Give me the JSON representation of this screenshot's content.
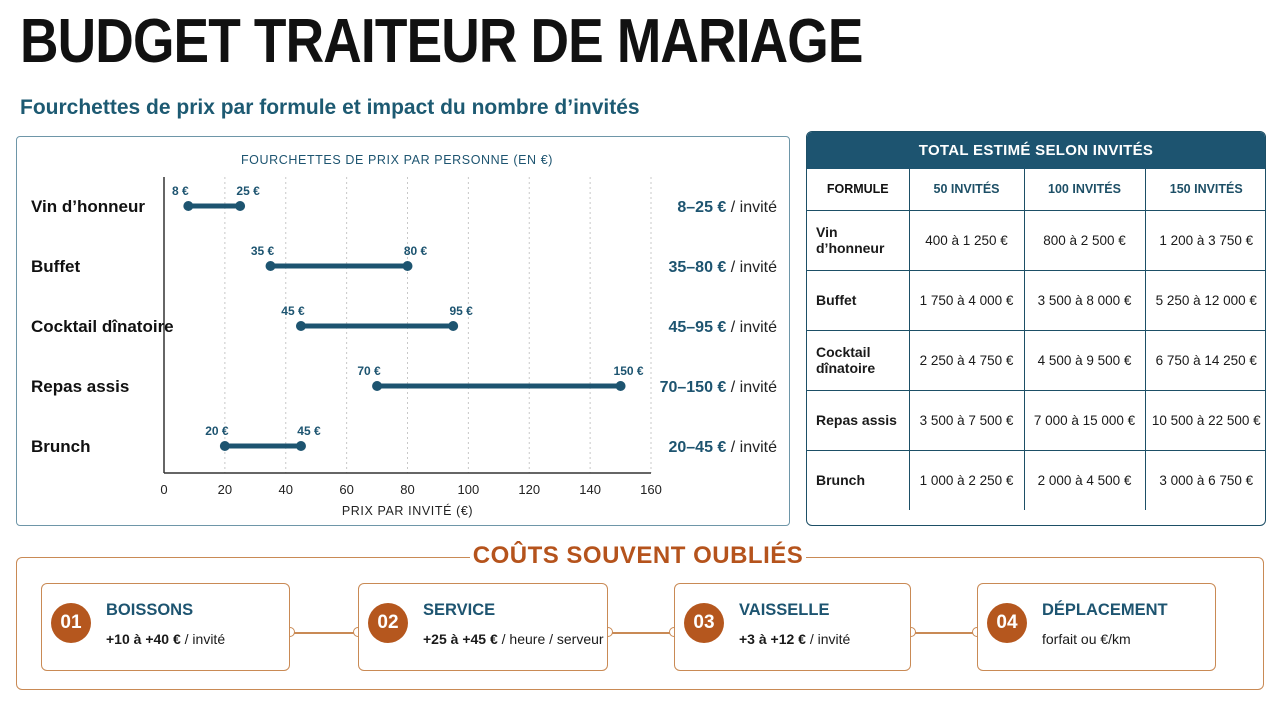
{
  "header": {
    "title": "BUDGET TRAITEUR DE MARIAGE",
    "subtitle": "Fourchettes de prix par formule et impact du nombre d’invités"
  },
  "colors": {
    "primary": "#1d5470",
    "accent": "#b5571e",
    "accent_border": "#c98a55",
    "grid": "#c8c8c8"
  },
  "chart_data": {
    "type": "range-bar",
    "title": "FOURCHETTES DE PRIX PAR PERSONNE (EN €)",
    "xlabel": "PRIX PAR INVITÉ (€)",
    "xlim": [
      0,
      160
    ],
    "xticks": [
      0,
      20,
      40,
      60,
      80,
      100,
      120,
      140,
      160
    ],
    "grid": "vertical dotted",
    "range_suffix": " / invité",
    "categories": [
      "Vin d’honneur",
      "Buffet",
      "Cocktail dînatoire",
      "Repas assis",
      "Brunch"
    ],
    "series": [
      {
        "low": 8,
        "high": 25,
        "low_label": "8 €",
        "high_label": "25 €",
        "range_label": "8–25 €"
      },
      {
        "low": 35,
        "high": 80,
        "low_label": "35 €",
        "high_label": "80 €",
        "range_label": "35–80 €"
      },
      {
        "low": 45,
        "high": 95,
        "low_label": "45 €",
        "high_label": "95 €",
        "range_label": "45–95 €"
      },
      {
        "low": 70,
        "high": 150,
        "low_label": "70 €",
        "high_label": "150 €",
        "range_label": "70–150 €"
      },
      {
        "low": 20,
        "high": 45,
        "low_label": "20 €",
        "high_label": "45 €",
        "range_label": "20–45 €"
      }
    ]
  },
  "table": {
    "title": "TOTAL ESTIMÉ SELON INVITÉS",
    "headers": [
      "FORMULE",
      "50 INVITÉS",
      "100 INVITÉS",
      "150 INVITÉS"
    ],
    "rows": [
      [
        "Vin d’honneur",
        "400 à 1 250 €",
        "800 à 2 500 €",
        "1 200 à 3 750 €"
      ],
      [
        "Buffet",
        "1 750 à 4 000 €",
        "3 500 à 8 000 €",
        "5 250 à 12 000 €"
      ],
      [
        "Cocktail\ndînatoire",
        "2 250 à 4 750 €",
        "4 500 à 9 500 €",
        "6 750 à 14 250 €"
      ],
      [
        "Repas assis",
        "3 500 à 7 500 €",
        "7 000 à 15 000 €",
        "10 500 à 22 500 €"
      ],
      [
        "Brunch",
        "1 000 à 2 250 €",
        "2 000 à 4 500 €",
        "3 000 à 6 750 €"
      ]
    ]
  },
  "costs": {
    "title": "COÛTS SOUVENT OUBLIÉS",
    "items": [
      {
        "num": "01",
        "label": "BOISSONS",
        "value": "+10 à +40 €",
        "unit": " / invité"
      },
      {
        "num": "02",
        "label": "SERVICE",
        "value": "+25 à +45 €",
        "unit": " / heure / serveur"
      },
      {
        "num": "03",
        "label": "VAISSELLE",
        "value": "+3 à +12 €",
        "unit": " / invité"
      },
      {
        "num": "04",
        "label": "DÉPLACEMENT",
        "value": "",
        "unit": "forfait ou €/km"
      }
    ]
  }
}
